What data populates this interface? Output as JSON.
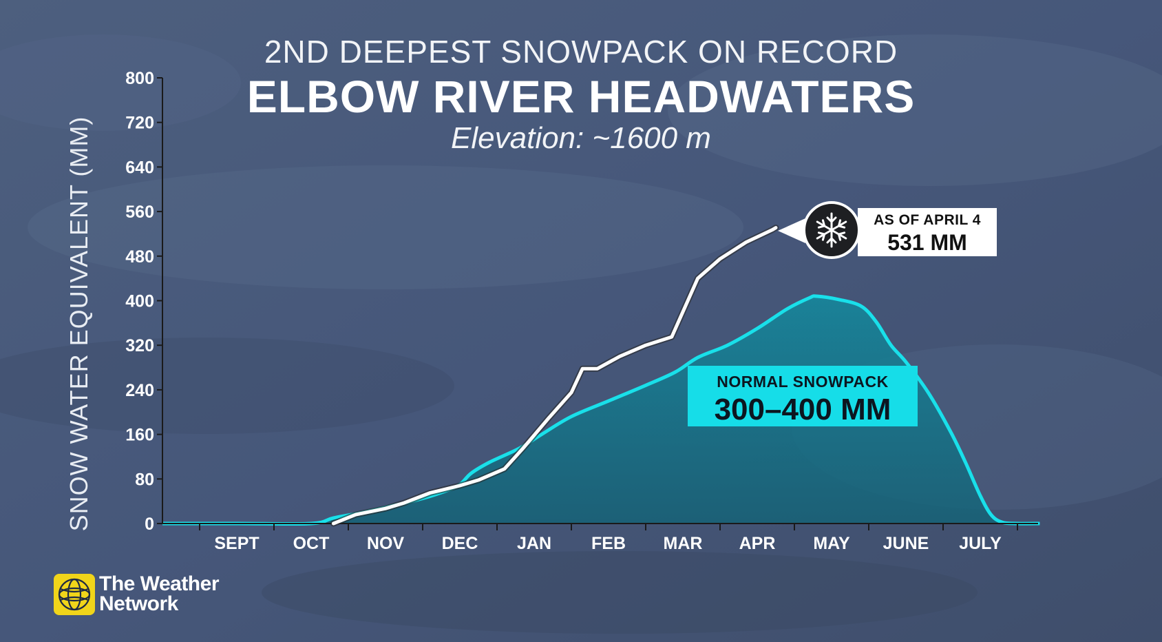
{
  "header": {
    "supertitle": "2ND DEEPEST SNOWPACK ON RECORD",
    "title": "ELBOW RIVER HEADWATERS",
    "subtitle": "Elevation: ~1600 m"
  },
  "callout_current": {
    "icon": "snowflake-icon",
    "line1": "AS OF APRIL 4",
    "line2": "531 MM"
  },
  "callout_normal": {
    "line1": "NORMAL SNOWPACK",
    "line2": "300–400 MM"
  },
  "brand": {
    "line1": "The Weather",
    "line2": "Network",
    "logo_icon": "weather-network-globe-icon"
  },
  "colors": {
    "current_line": "#ffffff",
    "current_line_outline": "#2a2a2a",
    "normal_line": "#19e0ea",
    "normal_fill": "#127a8c",
    "axis": "#1a1a1a",
    "tick_label": "#ffffff",
    "callout_bg": "#ffffff",
    "normal_label_bg": "#16dde8"
  },
  "chart_data": {
    "type": "area",
    "title": "ELBOW RIVER HEADWATERS",
    "xlabel": "",
    "ylabel": "SNOW WATER EQUIVALENT (MM)",
    "ylim": [
      0,
      800
    ],
    "xlim": [
      0,
      11.8
    ],
    "y_ticks": [
      0,
      80,
      160,
      240,
      320,
      400,
      480,
      560,
      640,
      720,
      800
    ],
    "x_ticks": [
      {
        "label": "SEPT",
        "x": 1
      },
      {
        "label": "OCT",
        "x": 2
      },
      {
        "label": "NOV",
        "x": 3
      },
      {
        "label": "DEC",
        "x": 4
      },
      {
        "label": "JAN",
        "x": 5
      },
      {
        "label": "FEB",
        "x": 6
      },
      {
        "label": "MAR",
        "x": 7
      },
      {
        "label": "APR",
        "x": 8
      },
      {
        "label": "MAY",
        "x": 9
      },
      {
        "label": "JUNE",
        "x": 10
      },
      {
        "label": "JULY",
        "x": 11
      }
    ],
    "grid": false,
    "legend": "none",
    "series": [
      {
        "type": "area",
        "color": "#19e0ea",
        "points": [
          [
            0,
            0
          ],
          [
            1,
            0
          ],
          [
            2,
            0
          ],
          [
            2.3,
            10
          ],
          [
            2.7,
            20
          ],
          [
            3.1,
            32
          ],
          [
            3.5,
            45
          ],
          [
            3.8,
            58
          ],
          [
            4.0,
            70
          ],
          [
            4.15,
            90
          ],
          [
            4.4,
            110
          ],
          [
            4.8,
            135
          ],
          [
            5.1,
            160
          ],
          [
            5.5,
            192
          ],
          [
            6.0,
            220
          ],
          [
            6.5,
            248
          ],
          [
            6.9,
            272
          ],
          [
            7.2,
            298
          ],
          [
            7.6,
            320
          ],
          [
            8.0,
            350
          ],
          [
            8.4,
            385
          ],
          [
            8.7,
            405
          ],
          [
            8.8,
            408
          ],
          [
            9.1,
            402
          ],
          [
            9.4,
            390
          ],
          [
            9.6,
            362
          ],
          [
            9.8,
            320
          ],
          [
            10.0,
            290
          ],
          [
            10.3,
            235
          ],
          [
            10.6,
            165
          ],
          [
            10.8,
            110
          ],
          [
            11.0,
            50
          ],
          [
            11.15,
            15
          ],
          [
            11.3,
            2
          ],
          [
            11.5,
            0
          ],
          [
            11.8,
            0
          ]
        ]
      },
      {
        "type": "line",
        "color": "#ffffff",
        "points": [
          [
            2.3,
            0
          ],
          [
            2.6,
            16
          ],
          [
            3.0,
            27
          ],
          [
            3.25,
            37
          ],
          [
            3.6,
            55
          ],
          [
            4.0,
            68
          ],
          [
            4.25,
            78
          ],
          [
            4.6,
            98
          ],
          [
            4.85,
            135
          ],
          [
            5.2,
            190
          ],
          [
            5.5,
            235
          ],
          [
            5.65,
            278
          ],
          [
            5.85,
            278
          ],
          [
            6.15,
            300
          ],
          [
            6.5,
            320
          ],
          [
            6.85,
            335
          ],
          [
            7.0,
            380
          ],
          [
            7.2,
            440
          ],
          [
            7.5,
            475
          ],
          [
            7.85,
            505
          ],
          [
            8.2,
            527
          ],
          [
            8.25,
            531
          ]
        ]
      }
    ],
    "annotations": [
      {
        "text": "AS OF APRIL 4 531 MM",
        "x": 8.25,
        "y": 531
      },
      {
        "text": "NORMAL SNOWPACK 300–400 MM",
        "x": 9.0,
        "y": 270
      }
    ]
  }
}
